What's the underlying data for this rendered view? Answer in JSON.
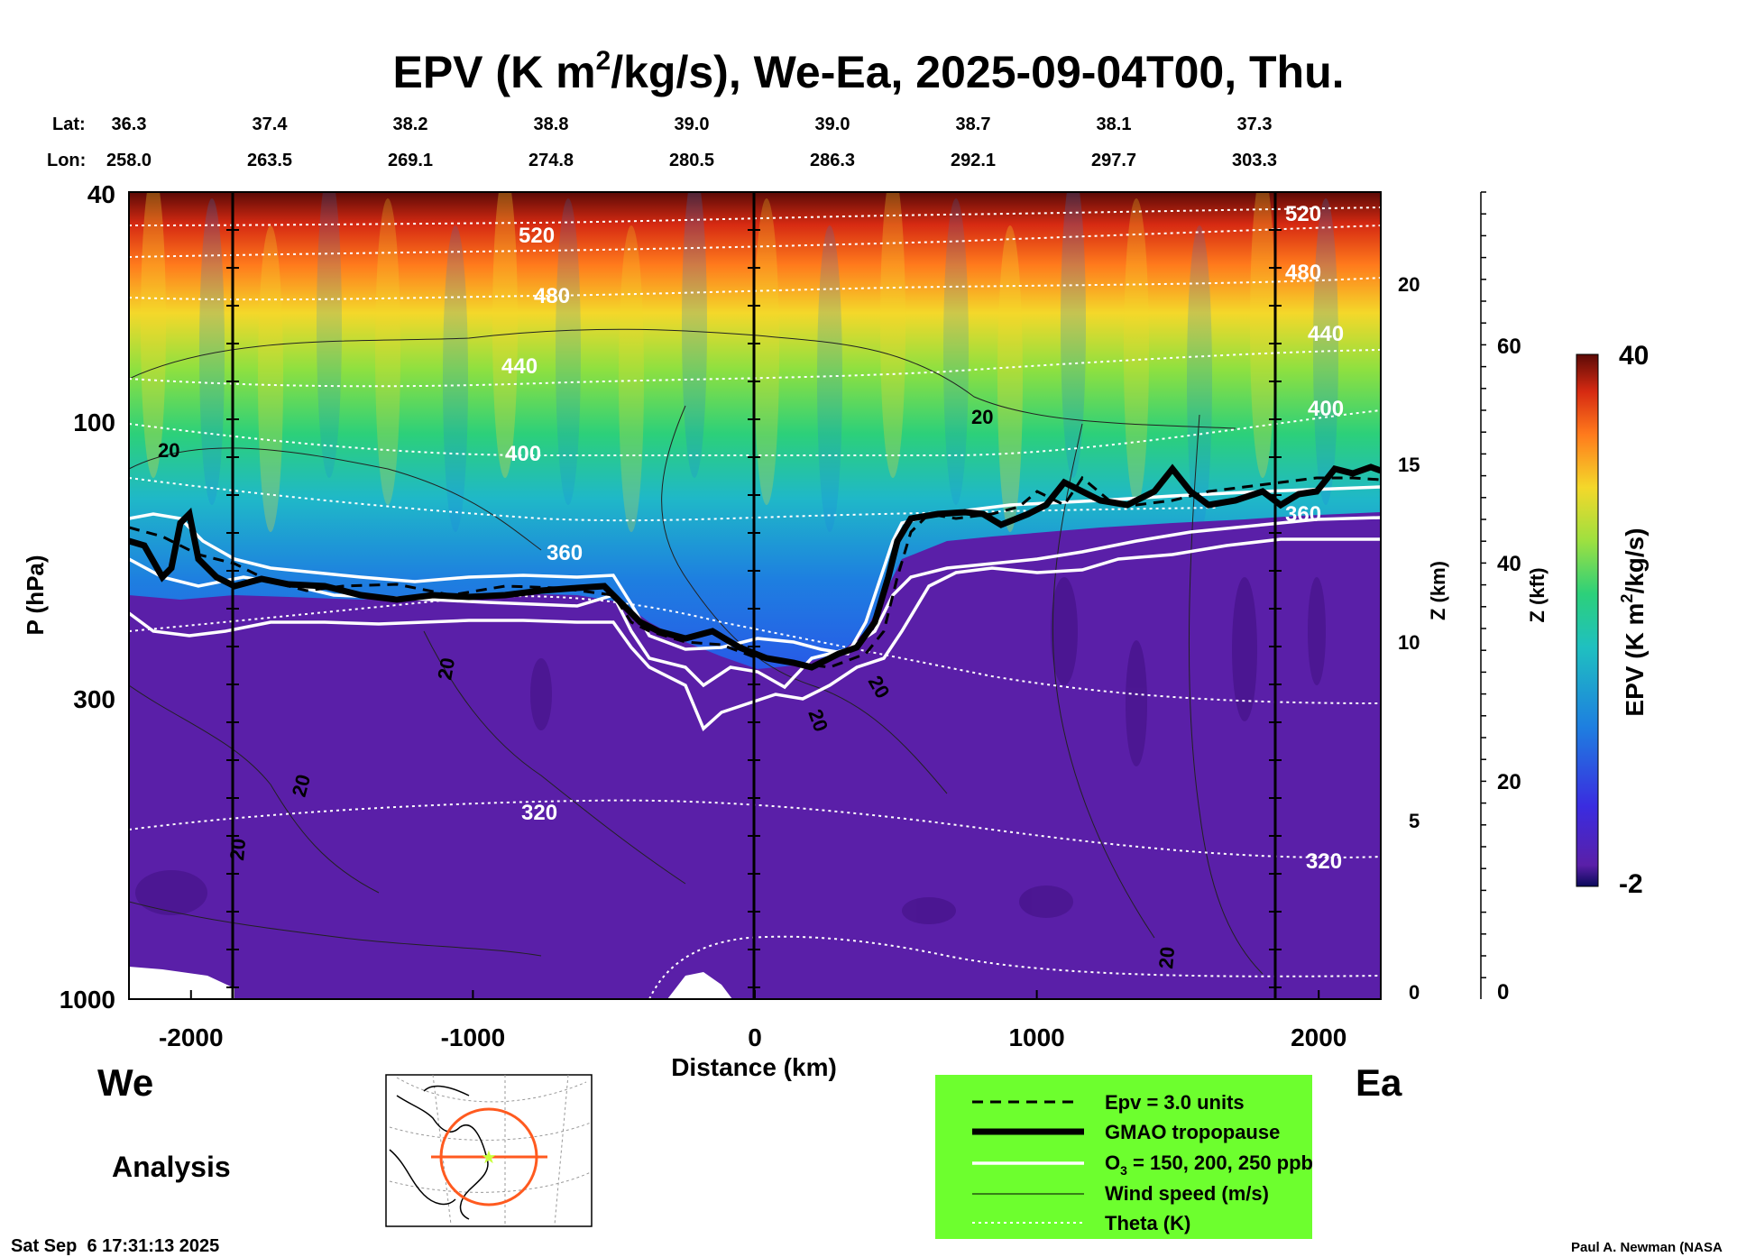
{
  "chart_data": {
    "type": "heatmap",
    "title_prefix": "EPV (K m",
    "title_sup": "2",
    "title_suffix": "/kg/s), We-Ea, 2025-09-04T00, Thu.",
    "lat_label": "Lat:",
    "lon_label": "Lon:",
    "lats": [
      "36.3",
      "37.4",
      "38.2",
      "38.8",
      "39.0",
      "39.0",
      "38.7",
      "38.1",
      "37.3"
    ],
    "lons": [
      "258.0",
      "263.5",
      "269.1",
      "274.8",
      "280.5",
      "286.3",
      "292.1",
      "297.7",
      "303.3"
    ],
    "xlabel": "Distance (km)",
    "x_range": [
      -2220,
      2220
    ],
    "x_ticks": [
      -2000,
      -1000,
      0,
      1000,
      2000
    ],
    "x_tick_labels": [
      "-2000",
      "-1000",
      "0",
      "1000",
      "2000"
    ],
    "ylabel": "P (hPa)",
    "p_range": [
      1000,
      40
    ],
    "p_tick_labels": [
      "40",
      "100",
      "300",
      "1000"
    ],
    "z_km_label": "Z (km)",
    "z_km_ticks": [
      "0",
      "5",
      "10",
      "15",
      "20"
    ],
    "z_kft_label": "Z (kft)",
    "z_kft_ticks": [
      "0",
      "20",
      "40",
      "60"
    ],
    "colorbar": {
      "label_prefix": "EPV (K m",
      "label_sup": "2",
      "label_suffix": "/kg/s)",
      "min": -2,
      "max": 40,
      "min_label": "-2",
      "max_label": "40"
    },
    "theta_contours": [
      {
        "theta": 320,
        "labels": [
          "320",
          "320"
        ]
      },
      {
        "theta": 360,
        "labels": [
          "360",
          "360"
        ]
      },
      {
        "theta": 400,
        "labels": [
          "400",
          "400"
        ]
      },
      {
        "theta": 440,
        "labels": [
          "440",
          "440"
        ]
      },
      {
        "theta": 480,
        "labels": [
          "480",
          "480"
        ]
      },
      {
        "theta": 520,
        "labels": [
          "520",
          "520"
        ]
      }
    ],
    "wind_labels": [
      "20",
      "20",
      "20",
      "20",
      "20",
      "20",
      "20",
      "20"
    ],
    "tropopause_description": "GMAO tropopause near 200 hPa west of 0 km, dipping to ~280 hPa near 0 km, rising to ~150 hPa east of 500 km",
    "corner_left": "We",
    "corner_right": "Ea",
    "legend": [
      {
        "style": "dashed",
        "label": "Epv = 3.0 units"
      },
      {
        "style": "thick",
        "label": "GMAO tropopause"
      },
      {
        "style": "white",
        "label_prefix": "O",
        "label_sub": "3",
        "label_suffix": " = 150, 200, 250 ppb"
      },
      {
        "style": "thin",
        "label": "Wind speed (m/s)"
      },
      {
        "style": "dotted",
        "label": "Theta (K)"
      }
    ]
  },
  "analysis_label": "Analysis",
  "timestamp": "Sat Sep  6 17:31:13 2025",
  "credit": "Paul A. Newman (NASA",
  "colors": {
    "legend_bg": "#6dff2e",
    "tropo_purple": "#5a1fa8",
    "map_ring": "#ff5a1f",
    "map_star": "#c8ff3a"
  }
}
